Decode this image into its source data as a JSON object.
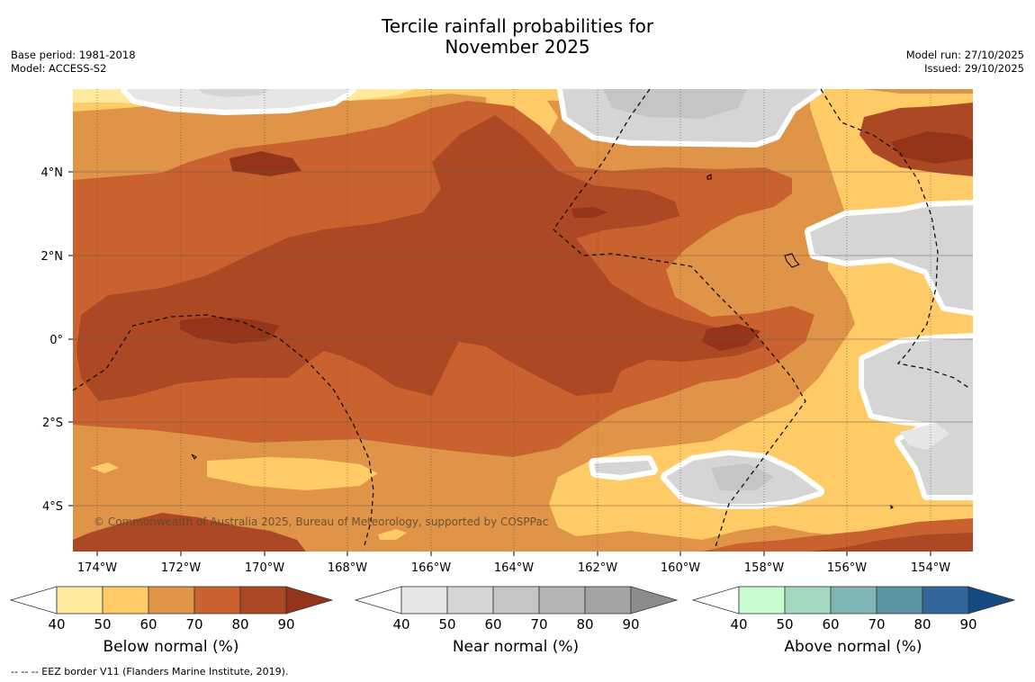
{
  "header": {
    "title_line1": "Tercile rainfall probabilities for",
    "title_line2": "November 2025",
    "base_period": "Base period: 1981-2018",
    "model": "Model: ACCESS-S2",
    "model_run": "Model run: 27/10/2025",
    "issued": "Issued: 29/10/2025"
  },
  "map": {
    "copyright": "© Commonwealth of Australia 2025, Bureau of Meteorology, supported by COSPPac",
    "lon_labels": [
      "174°W",
      "172°W",
      "170°W",
      "168°W",
      "166°W",
      "164°W",
      "162°W",
      "160°W",
      "158°W",
      "156°W",
      "154°W"
    ],
    "lat_labels": [
      "4°N",
      "2°N",
      "0°",
      "2°S",
      "4°S"
    ],
    "colors": {
      "below_40_50": "#fee99c",
      "below_50_60": "#fecb66",
      "below_60_70": "#df9447",
      "below_70_80": "#c9622f",
      "below_80_90": "#ad4824",
      "below_90": "#93341b",
      "near_40_50": "#e6e6e6",
      "near_50_60": "#d5d5d5",
      "near_60_70": "#c5c5c5",
      "ocean_boundary": "#ffffff"
    }
  },
  "colorbars": [
    {
      "title": "Below normal (%)",
      "ticks": [
        "40",
        "50",
        "60",
        "70",
        "80",
        "90"
      ],
      "colors": [
        "#fee99c",
        "#fecb66",
        "#df9447",
        "#c9622f",
        "#ad4824"
      ],
      "extend_color": "#93341b"
    },
    {
      "title": "Near normal (%)",
      "ticks": [
        "40",
        "50",
        "60",
        "70",
        "80",
        "90"
      ],
      "colors": [
        "#e6e6e6",
        "#d5d5d5",
        "#c5c5c5",
        "#b4b4b4",
        "#a3a3a3"
      ],
      "extend_color": "#8c8c8c"
    },
    {
      "title": "Above normal (%)",
      "ticks": [
        "40",
        "50",
        "60",
        "70",
        "80",
        "90"
      ],
      "colors": [
        "#c8fdd1",
        "#a2d8be",
        "#7fb5b2",
        "#5a93a1",
        "#33679b"
      ],
      "extend_color": "#164b81"
    }
  ],
  "footer": {
    "eez_note": "--  --  -- EEZ border V11 (Flanders Marine Institute, 2019)."
  }
}
